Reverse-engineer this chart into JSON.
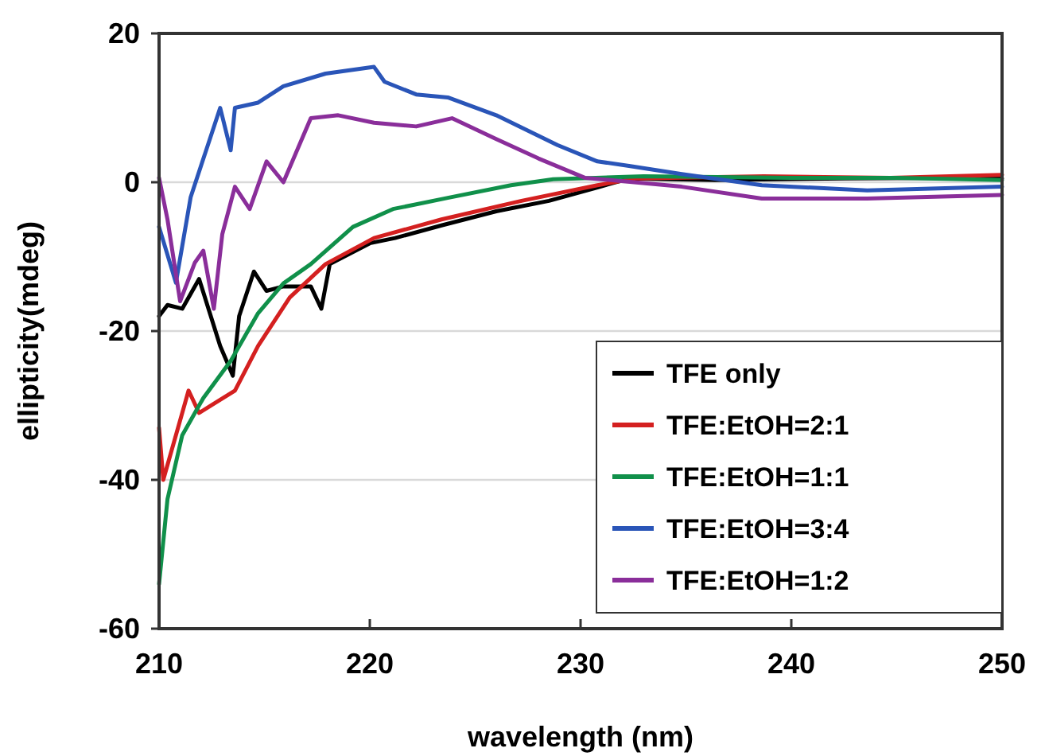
{
  "chart_data": {
    "type": "line",
    "xlabel": "wavelength (nm)",
    "ylabel": "ellipticity(mdeg)",
    "xlim": [
      210,
      250
    ],
    "xticks": [
      210,
      220,
      230,
      240,
      250
    ],
    "ylim": [
      -60,
      20
    ],
    "yticks": [
      -60,
      -40,
      -20,
      0,
      20
    ],
    "grid": "y",
    "legend": "bottom right",
    "marker": "none",
    "line_style": "solid",
    "series": [
      {
        "name": "TFE only",
        "color": "#000000",
        "x": [
          210,
          210.4,
          211.1,
          211.9,
          212.9,
          213.5,
          213.8,
          214.5,
          215.1,
          215.9,
          217.2,
          217.7,
          218.1,
          220,
          221.2,
          223.4,
          226,
          228.5,
          230.8,
          232.3,
          236.4,
          242.5,
          247.7,
          250
        ],
        "values": [
          -18,
          -16.5,
          -17,
          -13,
          -22,
          -26,
          -18,
          -12,
          -14.6,
          -14,
          -14,
          -17,
          -11,
          -8.2,
          -7.5,
          -5.8,
          -3.9,
          -2.5,
          -0.7,
          0.5,
          0.3,
          0.5,
          0.6,
          0.5
        ]
      },
      {
        "name": "TFE:EtOH=2:1",
        "color": "#d42020",
        "x": [
          210,
          210.2,
          211.4,
          211.9,
          213.6,
          214.7,
          216.2,
          217.9,
          220.2,
          223.4,
          227.2,
          230.8,
          232.6,
          238.7,
          244.7,
          250
        ],
        "values": [
          -33,
          -40,
          -28,
          -31,
          -28,
          -22,
          -15.5,
          -11,
          -7.5,
          -5,
          -2.5,
          -0.4,
          0.5,
          0.8,
          0.6,
          1
        ]
      },
      {
        "name": "TFE:EtOH=1:1",
        "color": "#10904a",
        "x": [
          210,
          210.4,
          211.1,
          212.1,
          213.4,
          214.7,
          215.9,
          217.2,
          219.2,
          221.1,
          223.7,
          226.7,
          228.7,
          233,
          240,
          245,
          250
        ],
        "values": [
          -54,
          -42.6,
          -34,
          -29,
          -24,
          -17.6,
          -13.6,
          -11,
          -6,
          -3.6,
          -2.1,
          -0.4,
          0.4,
          0.8,
          0.6,
          0.6,
          0.3
        ]
      },
      {
        "name": "TFE:EtOH=3:4",
        "color": "#2a55b8",
        "x": [
          210,
          210.8,
          211.5,
          212.9,
          213.4,
          213.6,
          214.7,
          215.9,
          217.9,
          220.2,
          220.7,
          222.2,
          223.7,
          226,
          228.9,
          230.8,
          232.3,
          234.8,
          238.6,
          243.6,
          250
        ],
        "values": [
          -6,
          -13.5,
          -2,
          10,
          4.3,
          10,
          10.7,
          12.9,
          14.6,
          15.5,
          13.5,
          11.8,
          11.4,
          9,
          5,
          2.8,
          2.2,
          1.1,
          -0.4,
          -1.1,
          -0.6
        ]
      },
      {
        "name": "TFE:EtOH=1:2",
        "color": "#8a2e9a",
        "x": [
          210,
          210.4,
          211,
          211.7,
          212.1,
          212.6,
          213,
          213.6,
          214.3,
          215.1,
          215.9,
          217.2,
          218.5,
          220.2,
          222.2,
          223.9,
          226,
          228,
          230.2,
          234.8,
          238.6,
          243.6,
          250
        ],
        "values": [
          0.6,
          -5,
          -16,
          -10.8,
          -9.2,
          -17,
          -7,
          -0.6,
          -3.6,
          2.8,
          0,
          8.6,
          9,
          8,
          7.5,
          8.6,
          5.8,
          3.2,
          0.6,
          -0.6,
          -2.2,
          -2.2,
          -1.7
        ]
      }
    ]
  }
}
